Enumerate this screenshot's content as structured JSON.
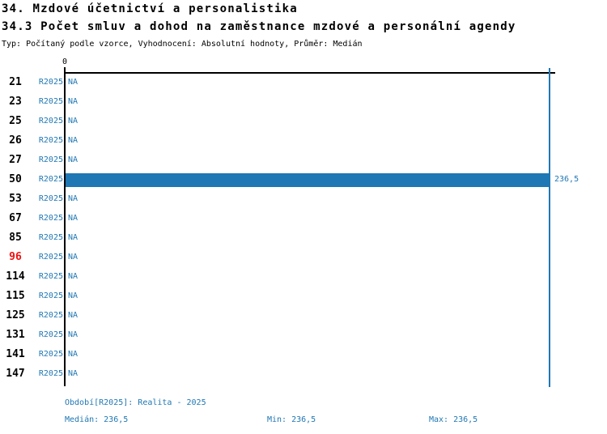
{
  "header": {
    "title": "34. Mzdové účetnictví a personalistika",
    "subtitle": "34.3 Počet smluv a dohod na zaměstnance mzdové a personální agendy",
    "meta": "Typ: Počítaný podle vzorce, Vyhodnocení: Absolutní hodnoty, Průměr: Medián"
  },
  "axis": {
    "zero_label": "0"
  },
  "chart": {
    "rows": [
      {
        "label": "21",
        "period": "R2025",
        "value": "NA",
        "highlight": false,
        "bar": false
      },
      {
        "label": "23",
        "period": "R2025",
        "value": "NA",
        "highlight": false,
        "bar": false
      },
      {
        "label": "25",
        "period": "R2025",
        "value": "NA",
        "highlight": false,
        "bar": false
      },
      {
        "label": "26",
        "period": "R2025",
        "value": "NA",
        "highlight": false,
        "bar": false
      },
      {
        "label": "27",
        "period": "R2025",
        "value": "NA",
        "highlight": false,
        "bar": false
      },
      {
        "label": "50",
        "period": "R2025",
        "value": "236,5",
        "highlight": false,
        "bar": true
      },
      {
        "label": "53",
        "period": "R2025",
        "value": "NA",
        "highlight": false,
        "bar": false
      },
      {
        "label": "67",
        "period": "R2025",
        "value": "NA",
        "highlight": false,
        "bar": false
      },
      {
        "label": "85",
        "period": "R2025",
        "value": "NA",
        "highlight": false,
        "bar": false
      },
      {
        "label": "96",
        "period": "R2025",
        "value": "NA",
        "highlight": true,
        "bar": false
      },
      {
        "label": "114",
        "period": "R2025",
        "value": "NA",
        "highlight": false,
        "bar": false
      },
      {
        "label": "115",
        "period": "R2025",
        "value": "NA",
        "highlight": false,
        "bar": false
      },
      {
        "label": "125",
        "period": "R2025",
        "value": "NA",
        "highlight": false,
        "bar": false
      },
      {
        "label": "131",
        "period": "R2025",
        "value": "NA",
        "highlight": false,
        "bar": false
      },
      {
        "label": "141",
        "period": "R2025",
        "value": "NA",
        "highlight": false,
        "bar": false
      },
      {
        "label": "147",
        "period": "R2025",
        "value": "NA",
        "highlight": false,
        "bar": false
      }
    ]
  },
  "footer": {
    "period_line": "Období[R2025]: Realita - 2025",
    "median": "Medián: 236,5",
    "min": "Min: 236,5",
    "max": "Max: 236,5"
  },
  "colors": {
    "bar": "#1f77b4",
    "blue_text": "#1f77b4",
    "highlight_red": "#ee1111",
    "axis": "#000000"
  },
  "chart_data": {
    "type": "bar",
    "orientation": "horizontal",
    "title": "34. Mzdové účetnictví a personalistika",
    "subtitle": "34.3 Počet smluv a dohod na zaměstnance mzdové a personální agendy",
    "meta": "Typ: Počítaný podle vzorce, Vyhodnocení: Absolutní hodnoty, Průměr: Medián",
    "categories": [
      "21",
      "23",
      "25",
      "26",
      "27",
      "50",
      "53",
      "67",
      "85",
      "96",
      "114",
      "115",
      "125",
      "131",
      "141",
      "147"
    ],
    "series": [
      {
        "name": "R2025",
        "values": [
          null,
          null,
          null,
          null,
          null,
          236.5,
          null,
          null,
          null,
          null,
          null,
          null,
          null,
          null,
          null,
          null
        ],
        "na_label": "NA"
      }
    ],
    "highlighted_category": "96",
    "value_axis": {
      "position": "top",
      "ticks": [
        0
      ],
      "min": 0
    },
    "reference_line": {
      "value": 236.5,
      "color": "#1f77b4"
    },
    "summary": {
      "period": "Realita - 2025",
      "median": 236.5,
      "min": 236.5,
      "max": 236.5
    },
    "grid": false,
    "legend": false
  }
}
